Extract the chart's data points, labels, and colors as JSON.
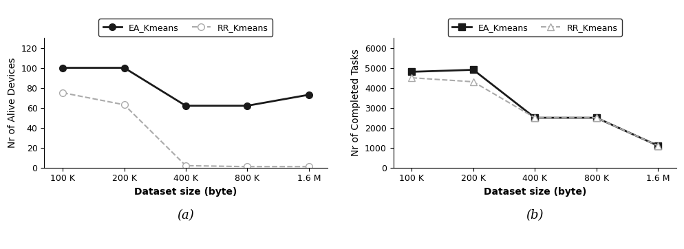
{
  "x_labels": [
    "100 K",
    "200 K",
    "400 K",
    "800 K",
    "1.6 M"
  ],
  "x_positions": [
    0,
    1,
    2,
    3,
    4
  ],
  "plot_a": {
    "title": "(a)",
    "ylabel": "Nr of Alive Devices",
    "xlabel": "Dataset size (byte)",
    "ylim": [
      0,
      130
    ],
    "yticks": [
      0,
      20,
      40,
      60,
      80,
      100,
      120
    ],
    "ea_kmeans": [
      100,
      100,
      62,
      62,
      73
    ],
    "rr_kmeans": [
      75,
      63,
      2,
      1,
      1
    ],
    "ea_color": "#1a1a1a",
    "rr_color": "#aaaaaa",
    "ea_marker": "o",
    "rr_marker": "o",
    "ea_linestyle": "-",
    "rr_linestyle": "--",
    "ea_label": "EA_Kmeans",
    "rr_label": "RR_Kmeans",
    "ea_linewidth": 2.0,
    "rr_linewidth": 1.5,
    "ea_markersize": 7,
    "rr_markersize": 7,
    "ea_markerfacecolor": "#1a1a1a",
    "rr_markerfacecolor": "white"
  },
  "plot_b": {
    "title": "(b)",
    "ylabel": "Nr of Completed Tasks",
    "xlabel": "Dataset size (byte)",
    "ylim": [
      0,
      6500
    ],
    "yticks": [
      0,
      1000,
      2000,
      3000,
      4000,
      5000,
      6000
    ],
    "ea_kmeans": [
      4800,
      4900,
      2500,
      2500,
      1100
    ],
    "rr_kmeans": [
      4500,
      4300,
      2500,
      2500,
      1100
    ],
    "ea_color": "#1a1a1a",
    "rr_color": "#aaaaaa",
    "ea_marker": "s",
    "rr_marker": "^",
    "ea_linestyle": "-",
    "rr_linestyle": "--",
    "ea_label": "EA_Kmeans",
    "rr_label": "RR_Kmeans",
    "ea_linewidth": 2.0,
    "rr_linewidth": 1.5,
    "ea_markersize": 7,
    "rr_markersize": 7,
    "ea_markerfacecolor": "#1a1a1a",
    "rr_markerfacecolor": "white"
  },
  "background_color": "#ffffff",
  "legend_fontsize": 9,
  "axis_label_fontsize": 10,
  "tick_fontsize": 9,
  "subtitle_fontsize": 13
}
